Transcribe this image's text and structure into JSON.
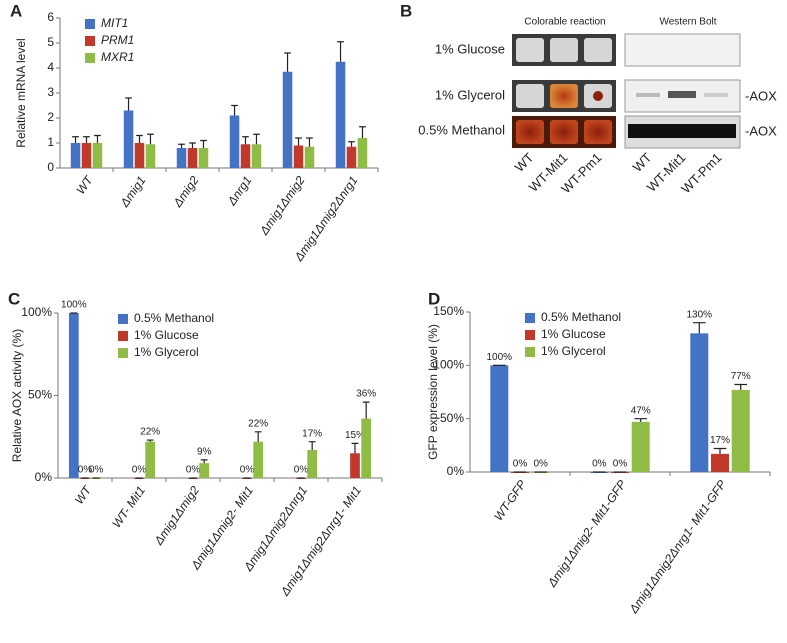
{
  "chart_data": [
    {
      "type": "bar",
      "panel_label": "A",
      "y_label": "Relative mRNA level",
      "categories": [
        "WT",
        "Δmig1",
        "Δmig2",
        "Δnrg1",
        "Δmig1Δmig2",
        "Δmig1Δmig2Δnrg1"
      ],
      "series": [
        {
          "name": "MIT1",
          "color": "#4472c4",
          "values": [
            1.0,
            2.3,
            0.8,
            2.1,
            3.85,
            4.25
          ],
          "errors": [
            0.25,
            0.5,
            0.15,
            0.4,
            0.75,
            0.8
          ]
        },
        {
          "name": "PRM1",
          "color": "#c0392b",
          "values": [
            1.0,
            1.0,
            0.8,
            0.95,
            0.9,
            0.85
          ],
          "errors": [
            0.25,
            0.3,
            0.2,
            0.3,
            0.3,
            0.2
          ]
        },
        {
          "name": "MXR1",
          "color": "#8fbc45",
          "values": [
            1.0,
            0.95,
            0.8,
            0.95,
            0.85,
            1.2
          ],
          "errors": [
            0.3,
            0.4,
            0.3,
            0.4,
            0.35,
            0.45
          ]
        }
      ],
      "ylim": [
        0,
        6
      ],
      "yticks": [
        0,
        1,
        2,
        3,
        4,
        5,
        6
      ],
      "legend": "upper-left"
    },
    {
      "type": "bar",
      "panel_label": "C",
      "y_label": "Relative AOX activity (%)",
      "categories": [
        "WT",
        "WT- Mit1",
        "Δmig1Δmig2",
        "Δmig1Δmig2- Mit1",
        "Δmig1Δmig2Δnrg1",
        "Δmig1Δmig2Δnrg1- Mit1"
      ],
      "series": [
        {
          "name": "0.5% Methanol",
          "color": "#4472c4",
          "values": [
            100,
            null,
            null,
            null,
            null,
            null
          ],
          "value_labels": [
            "100%",
            null,
            null,
            null,
            null,
            null
          ],
          "errors": [
            0,
            null,
            null,
            null,
            null,
            null
          ]
        },
        {
          "name": "1% Glucose",
          "color": "#c0392b",
          "values": [
            0,
            0,
            0,
            0,
            0,
            15
          ],
          "value_labels": [
            "0%",
            "0%",
            "0%",
            "0%",
            "0%",
            "15%"
          ],
          "errors": [
            0,
            0,
            0,
            0,
            0,
            6
          ]
        },
        {
          "name": "1% Glycerol",
          "color": "#8fbc45",
          "values": [
            0,
            22,
            9,
            22,
            17,
            36
          ],
          "value_labels": [
            "0%",
            "22%",
            "9%",
            "22%",
            "17%",
            "36%"
          ],
          "errors": [
            0,
            1,
            2,
            6,
            5,
            10
          ]
        }
      ],
      "ylim": [
        0,
        100
      ],
      "yticks": [
        {
          "value": 0,
          "label": "0%"
        },
        {
          "value": 50,
          "label": "50%"
        },
        {
          "value": 100,
          "label": "100%"
        }
      ],
      "legend": "upper-right"
    },
    {
      "type": "bar",
      "panel_label": "D",
      "y_label": "GFP expression level (%)",
      "categories": [
        "WT-GFP",
        "Δmig1Δmig2- Mit1-GFP",
        "Δmig1Δmig2Δnrg1- Mit1-GFP"
      ],
      "series": [
        {
          "name": "0.5% Methanol",
          "color": "#4472c4",
          "values": [
            100,
            0,
            130
          ],
          "value_labels": [
            "100%",
            "0%",
            "130%"
          ],
          "errors": [
            0,
            0,
            10
          ]
        },
        {
          "name": "1% Glucose",
          "color": "#c0392b",
          "values": [
            0,
            0,
            17
          ],
          "value_labels": [
            "0%",
            "0%",
            "17%"
          ],
          "errors": [
            0,
            0,
            5
          ]
        },
        {
          "name": "1% Glycerol",
          "color": "#8fbc45",
          "values": [
            0,
            47,
            77
          ],
          "value_labels": [
            "0%",
            "47%",
            "77%"
          ],
          "errors": [
            0,
            3,
            5
          ]
        }
      ],
      "ylim": [
        0,
        150
      ],
      "yticks": [
        {
          "value": 0,
          "label": "0%"
        },
        {
          "value": 50,
          "label": "50%"
        },
        {
          "value": 100,
          "label": "100%"
        },
        {
          "value": 150,
          "label": "150%"
        }
      ],
      "legend": "upper-center"
    }
  ],
  "blot_panel": {
    "panel_label": "B",
    "left_header": "Colorable reaction",
    "right_header": "Western Bolt",
    "rows": [
      "1% Glucose",
      "1% Glycerol",
      "0.5% Methanol"
    ],
    "band_labels": [
      "-AOX",
      "-AOX"
    ],
    "left_lanes": [
      "WT",
      "WT-Mit1",
      "WT-Pm1"
    ],
    "right_lanes": [
      "WT",
      "WT-Mit1",
      "WT-Pm1"
    ]
  }
}
